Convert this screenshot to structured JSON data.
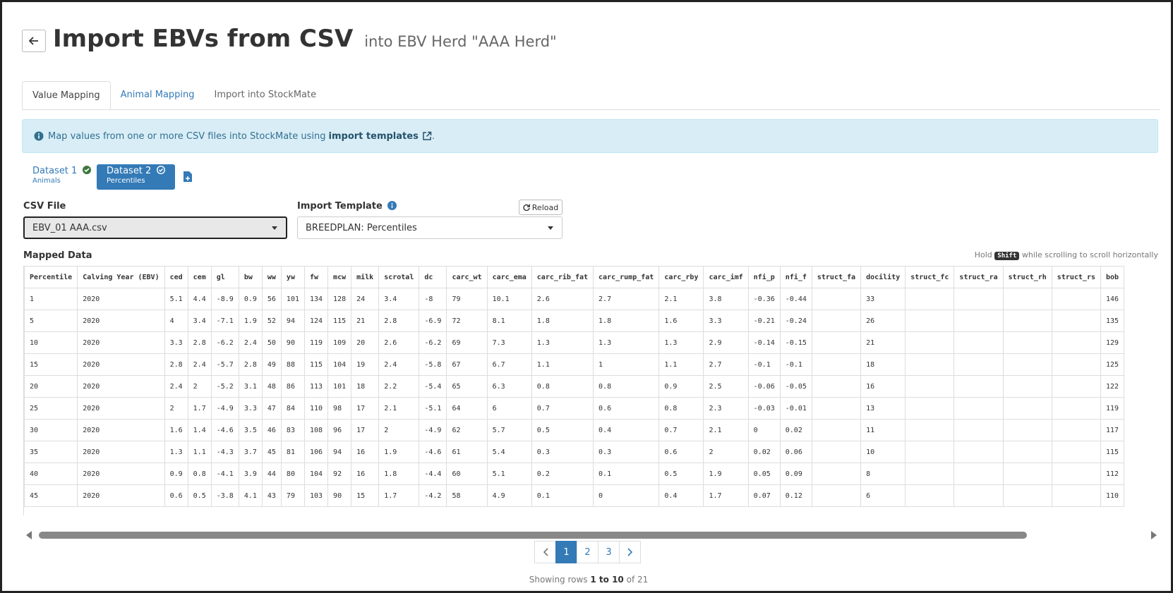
{
  "header": {
    "title": "Import EBVs from CSV",
    "subtitle": "into EBV Herd \"AAA Herd\""
  },
  "tabs": [
    "Value Mapping",
    "Animal Mapping",
    "Import into StockMate"
  ],
  "info": {
    "text": "Map values from one or more CSV files into StockMate using",
    "link": "import templates",
    "end": "."
  },
  "datasets": [
    {
      "name": "Dataset 1",
      "sub": "Animals"
    },
    {
      "name": "Dataset 2",
      "sub": "Percentiles"
    }
  ],
  "csv": {
    "label": "CSV File",
    "value": "EBV_01 AAA.csv"
  },
  "template": {
    "label": "Import Template",
    "reload": "Reload",
    "value": "BREEDPLAN: Percentiles"
  },
  "mapped": {
    "title": "Mapped Data",
    "hint_pre": "Hold",
    "hint_key": "Shift",
    "hint_post": "while scrolling to scroll horizontally"
  },
  "table": {
    "columns": [
      "Percentile",
      "Calving Year (EBV)",
      "ced",
      "cem",
      "gl",
      "bw",
      "ww",
      "yw",
      "fw",
      "mcw",
      "milk",
      "scrotal",
      "dc",
      "carc_wt",
      "carc_ema",
      "carc_rib_fat",
      "carc_rump_fat",
      "carc_rby",
      "carc_imf",
      "nfi_p",
      "nfi_f",
      "struct_fa",
      "docility",
      "struct_fc",
      "struct_ra",
      "struct_rh",
      "struct_rs",
      "bob"
    ],
    "rows": [
      [
        1,
        2020,
        5.1,
        4.4,
        -8.9,
        0.9,
        56,
        101,
        134,
        128,
        24,
        3.4,
        -8,
        79,
        10.1,
        2.6,
        2.7,
        2.1,
        3.8,
        -0.36,
        -0.44,
        null,
        33,
        null,
        null,
        null,
        null,
        146
      ],
      [
        5,
        2020,
        4,
        3.4,
        -7.1,
        1.9,
        52,
        94,
        124,
        115,
        21,
        2.8,
        -6.9,
        72,
        8.1,
        1.8,
        1.8,
        1.6,
        3.3,
        -0.21,
        -0.24,
        null,
        26,
        null,
        null,
        null,
        null,
        135
      ],
      [
        10,
        2020,
        3.3,
        2.8,
        -6.2,
        2.4,
        50,
        90,
        119,
        109,
        20,
        2.6,
        -6.2,
        69,
        7.3,
        1.3,
        1.3,
        1.3,
        2.9,
        -0.14,
        -0.15,
        null,
        21,
        null,
        null,
        null,
        null,
        129
      ],
      [
        15,
        2020,
        2.8,
        2.4,
        -5.7,
        2.8,
        49,
        88,
        115,
        104,
        19,
        2.4,
        -5.8,
        67,
        6.7,
        1.1,
        1,
        1.1,
        2.7,
        -0.1,
        -0.1,
        null,
        18,
        null,
        null,
        null,
        null,
        125
      ],
      [
        20,
        2020,
        2.4,
        2,
        -5.2,
        3.1,
        48,
        86,
        113,
        101,
        18,
        2.2,
        -5.4,
        65,
        6.3,
        0.8,
        0.8,
        0.9,
        2.5,
        -0.06,
        -0.05,
        null,
        16,
        null,
        null,
        null,
        null,
        122
      ],
      [
        25,
        2020,
        2,
        1.7,
        -4.9,
        3.3,
        47,
        84,
        110,
        98,
        17,
        2.1,
        -5.1,
        64,
        6,
        0.7,
        0.6,
        0.8,
        2.3,
        -0.03,
        -0.01,
        null,
        13,
        null,
        null,
        null,
        null,
        119
      ],
      [
        30,
        2020,
        1.6,
        1.4,
        -4.6,
        3.5,
        46,
        83,
        108,
        96,
        17,
        2,
        -4.9,
        62,
        5.7,
        0.5,
        0.4,
        0.7,
        2.1,
        0,
        0.02,
        null,
        11,
        null,
        null,
        null,
        null,
        117
      ],
      [
        35,
        2020,
        1.3,
        1.1,
        -4.3,
        3.7,
        45,
        81,
        106,
        94,
        16,
        1.9,
        -4.6,
        61,
        5.4,
        0.3,
        0.3,
        0.6,
        2,
        0.02,
        0.06,
        null,
        10,
        null,
        null,
        null,
        null,
        115
      ],
      [
        40,
        2020,
        0.9,
        0.8,
        -4.1,
        3.9,
        44,
        80,
        104,
        92,
        16,
        1.8,
        -4.4,
        60,
        5.1,
        0.2,
        0.1,
        0.5,
        1.9,
        0.05,
        0.09,
        null,
        8,
        null,
        null,
        null,
        null,
        112
      ],
      [
        45,
        2020,
        0.6,
        0.5,
        -3.8,
        4.1,
        43,
        79,
        103,
        90,
        15,
        1.7,
        -4.2,
        58,
        4.9,
        0.1,
        0,
        0.4,
        1.7,
        0.07,
        0.12,
        null,
        6,
        null,
        null,
        null,
        null,
        110
      ]
    ]
  },
  "pagination": {
    "pages": [
      1,
      2,
      3
    ],
    "text": "Showing rows",
    "range": "1 to 10",
    "total": "of 21"
  }
}
